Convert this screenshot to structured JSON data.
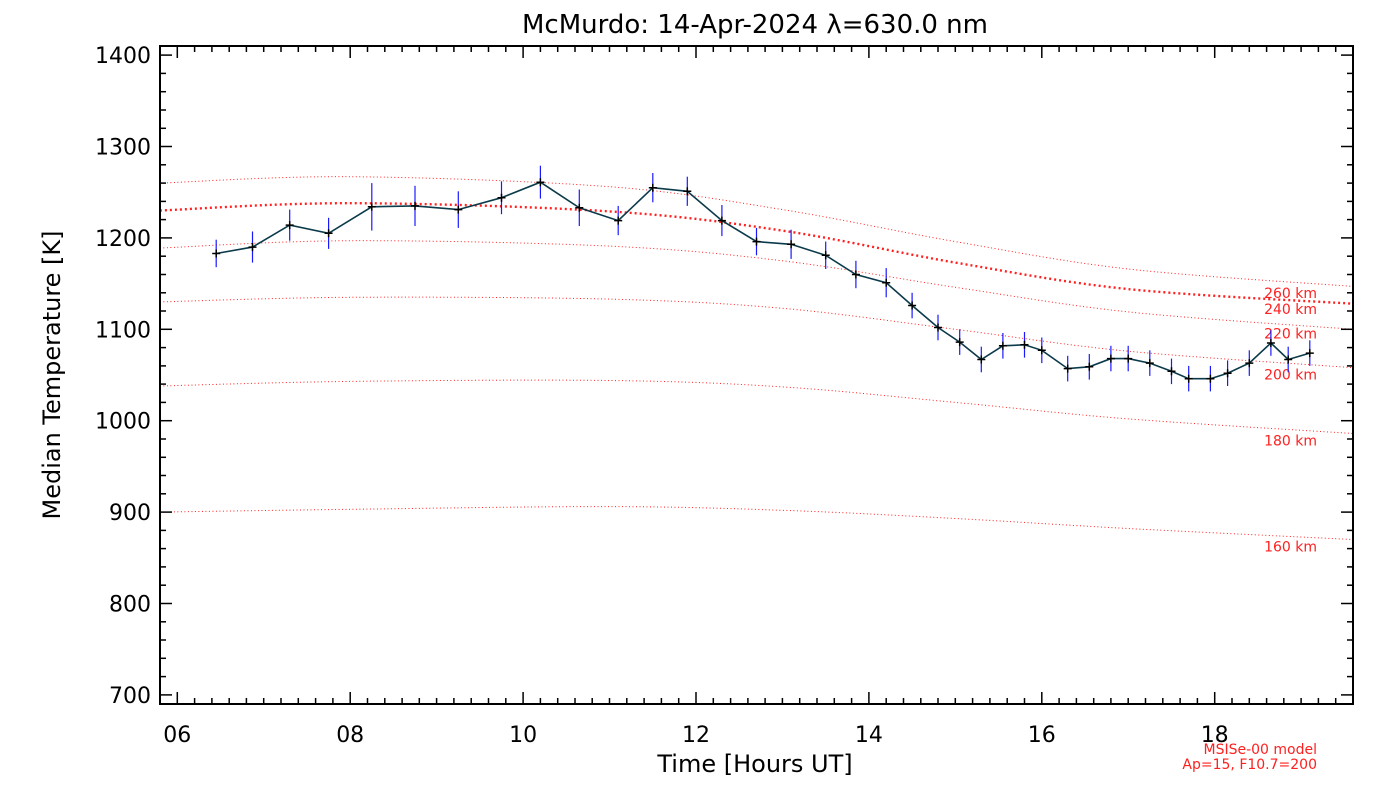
{
  "chart_data": {
    "type": "line",
    "title": "McMurdo: 14-Apr-2024 λ=630.0 nm",
    "xlabel": "Time [Hours UT]",
    "ylabel": "Median Temperature [K]",
    "xlim": [
      5.8,
      19.6
    ],
    "ylim": [
      690,
      1410
    ],
    "xticks": [
      6,
      8,
      10,
      12,
      14,
      16,
      18
    ],
    "xtick_labels": [
      "06",
      "08",
      "10",
      "12",
      "14",
      "16",
      "18"
    ],
    "yticks": [
      700,
      800,
      900,
      1000,
      1100,
      1200,
      1300,
      1400
    ],
    "ytick_labels": [
      "700",
      "800",
      "900",
      "1000",
      "1100",
      "1200",
      "1300",
      "1400"
    ],
    "grid": false,
    "series": [
      {
        "color": "#0b3a4a",
        "errorbar_color": "#1a1aff",
        "x": [
          6.45,
          6.87,
          7.3,
          7.75,
          8.25,
          8.75,
          9.25,
          9.75,
          10.2,
          10.65,
          11.1,
          11.5,
          11.9,
          12.3,
          12.7,
          13.1,
          13.5,
          13.85,
          14.2,
          14.5,
          14.8,
          15.05,
          15.3,
          15.55,
          15.8,
          16.0,
          16.3,
          16.55,
          16.8,
          17.0,
          17.25,
          17.5,
          17.7,
          17.95,
          18.15,
          18.4,
          18.65,
          18.85,
          19.1
        ],
        "y": [
          1183,
          1190,
          1214,
          1205,
          1234,
          1235,
          1231,
          1244,
          1261,
          1233,
          1219,
          1255,
          1251,
          1219,
          1196,
          1193,
          1181,
          1160,
          1151,
          1126,
          1102,
          1086,
          1067,
          1082,
          1083,
          1077,
          1057,
          1059,
          1068,
          1068,
          1063,
          1054,
          1046,
          1046,
          1052,
          1063,
          1085,
          1067,
          1074
        ],
        "err": [
          15,
          17,
          17,
          17,
          26,
          22,
          20,
          18,
          18,
          20,
          16,
          16,
          16,
          17,
          15,
          16,
          15,
          15,
          16,
          14,
          14,
          14,
          14,
          14,
          14,
          14,
          14,
          14,
          14,
          14,
          14,
          14,
          14,
          14,
          14,
          14,
          14,
          14,
          14
        ]
      }
    ],
    "model_lines": [
      {
        "label": "160 km",
        "x": [
          5.8,
          8.0,
          11.0,
          13.0,
          15.0,
          17.0,
          19.6
        ],
        "y": [
          900,
          903,
          906,
          902,
          893,
          882,
          870
        ]
      },
      {
        "label": "180 km",
        "x": [
          5.8,
          8.0,
          11.0,
          13.0,
          15.0,
          17.0,
          19.6
        ],
        "y": [
          1038,
          1043,
          1044,
          1037,
          1020,
          1002,
          986
        ]
      },
      {
        "label": "200 km",
        "x": [
          5.8,
          8.0,
          11.0,
          13.0,
          15.0,
          17.0,
          19.6
        ],
        "y": [
          1130,
          1135,
          1133,
          1123,
          1100,
          1076,
          1058
        ]
      },
      {
        "label": "220 km",
        "x": [
          5.8,
          8.0,
          11.0,
          13.0,
          15.0,
          17.0,
          19.6
        ],
        "y": [
          1189,
          1197,
          1191,
          1175,
          1146,
          1119,
          1100
        ]
      },
      {
        "label": "240 km",
        "x": [
          5.8,
          8.0,
          11.0,
          13.0,
          15.0,
          17.0,
          19.6
        ],
        "y": [
          1230,
          1238,
          1229,
          1208,
          1173,
          1144,
          1128
        ]
      },
      {
        "label": "260 km",
        "x": [
          5.8,
          8.0,
          11.0,
          13.0,
          15.0,
          17.0,
          19.6
        ],
        "y": [
          1260,
          1267,
          1256,
          1231,
          1196,
          1166,
          1147
        ]
      }
    ],
    "highlighted_model_line": "240 km",
    "model_line_label_positions": [
      {
        "label": "160 km",
        "y": 857
      },
      {
        "label": "180 km",
        "y": 973
      },
      {
        "label": "200 km",
        "y": 1045
      },
      {
        "label": "220 km",
        "y": 1090
      },
      {
        "label": "240 km",
        "y": 1117
      },
      {
        "label": "260 km",
        "y": 1134
      }
    ],
    "annotation_lines": [
      "MSISe-00 model",
      "Ap=15, F10.7=200"
    ],
    "model_color": "#ff2020"
  }
}
